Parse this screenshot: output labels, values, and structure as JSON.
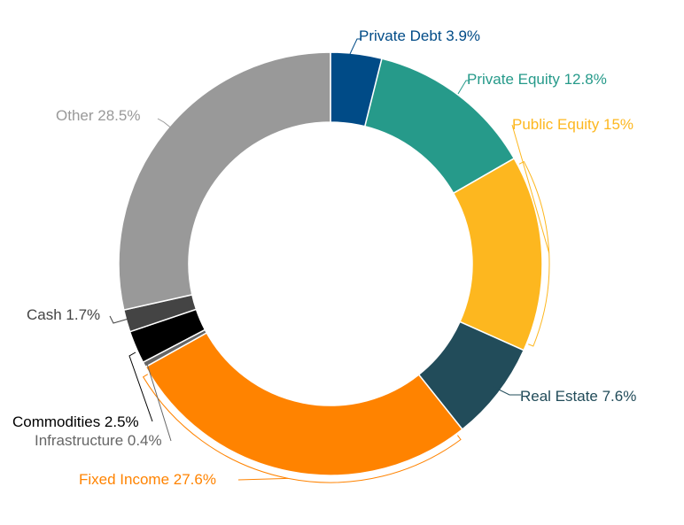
{
  "chart_data": {
    "type": "pie",
    "variant": "donut",
    "title": "",
    "start_angle_deg": 0,
    "direction": "clockwise",
    "slices": [
      {
        "label": "Private Debt 3.9%",
        "name": "Private Debt",
        "value": 3.9,
        "color": "#004B87"
      },
      {
        "label": "Private Equity 12.8%",
        "name": "Private Equity",
        "value": 12.8,
        "color": "#269A8A"
      },
      {
        "label": "Public Equity 15%",
        "name": "Public Equity",
        "value": 15.0,
        "color": "#FDB71F"
      },
      {
        "label": "Real Estate 7.6%",
        "name": "Real Estate",
        "value": 7.6,
        "color": "#224C5A"
      },
      {
        "label": "Fixed Income 27.6%",
        "name": "Fixed Income",
        "value": 27.6,
        "color": "#FF8300"
      },
      {
        "label": "Infrastructure 0.4%",
        "name": "Infrastructure",
        "value": 0.4,
        "color": "#666666"
      },
      {
        "label": "Commodities 2.5%",
        "name": "Commodities",
        "value": 2.5,
        "color": "#000000"
      },
      {
        "label": "Cash 1.7%",
        "name": "Cash",
        "value": 1.7,
        "color": "#444444"
      },
      {
        "label": "Other 28.5%",
        "name": "Other",
        "value": 28.5,
        "color": "#999999"
      }
    ]
  }
}
